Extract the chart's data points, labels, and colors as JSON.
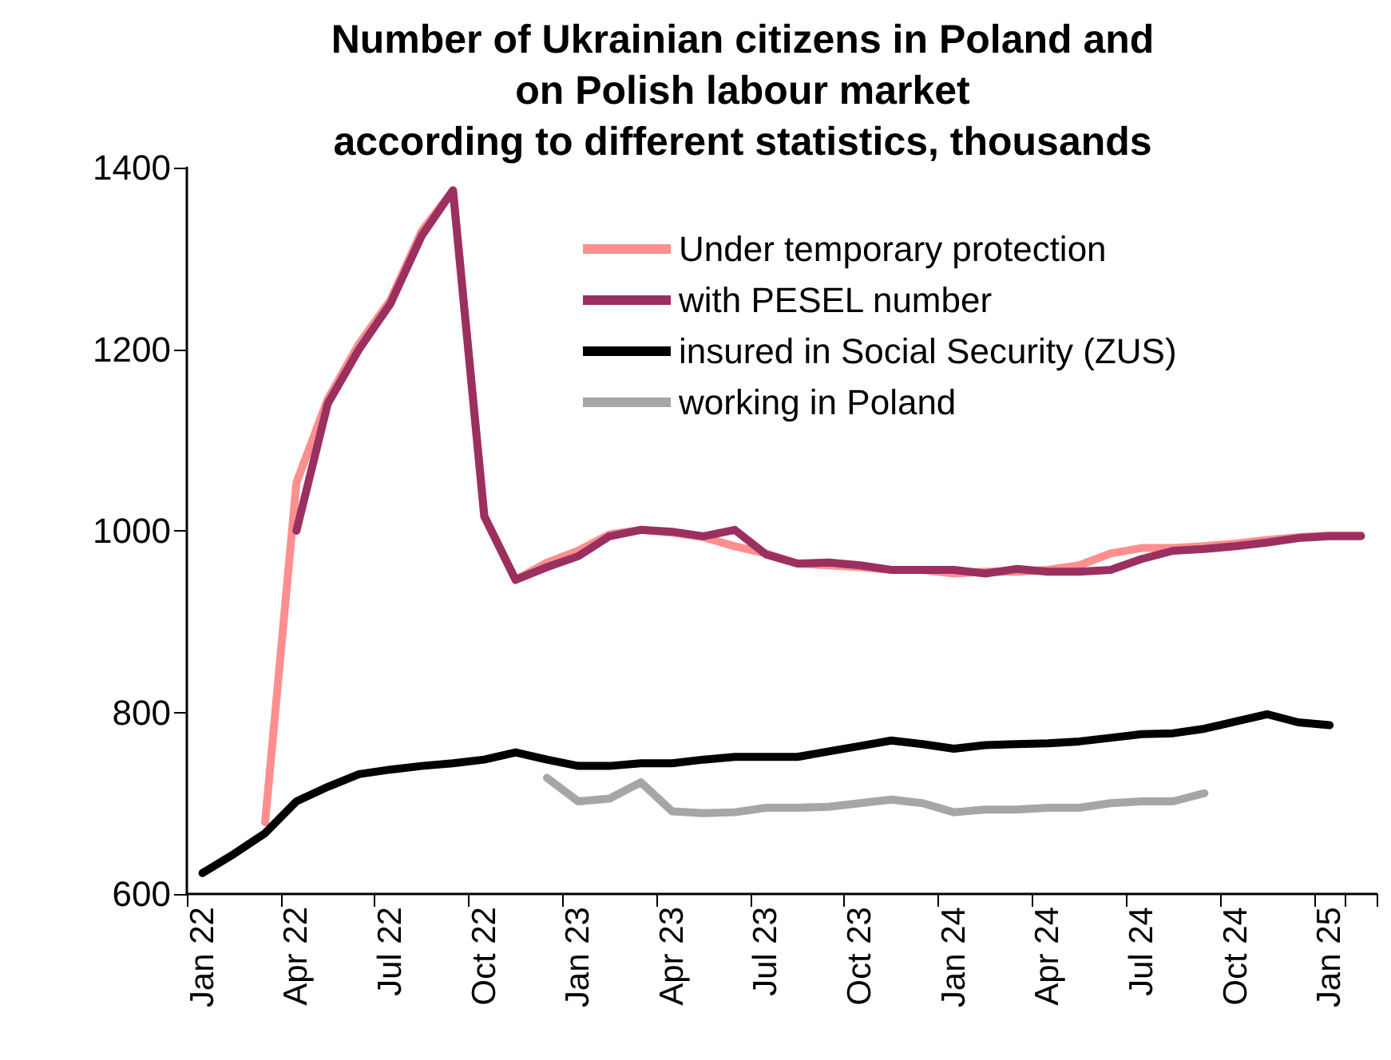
{
  "chart_data": {
    "type": "line",
    "title": "Number of Ukrainian citizens in Poland and\non Polish labour market\naccording to different statistics, thousands",
    "categories": [
      "Jan 22",
      null,
      null,
      "Apr 22",
      null,
      null,
      "Jul 22",
      null,
      null,
      "Oct 22",
      null,
      null,
      "Jan 23",
      null,
      null,
      "Apr 23",
      null,
      null,
      "Jul 23",
      null,
      null,
      "Oct 23",
      null,
      null,
      "Jan 24",
      null,
      null,
      "Apr 24",
      null,
      null,
      "Jul 24",
      null,
      null,
      "Oct 24",
      null,
      null,
      "Jan 25",
      null
    ],
    "series": [
      {
        "name": "Under temporary protection",
        "color": "#ff8f8f",
        "values": [
          null,
          null,
          679,
          1053,
          1145,
          1206,
          1254,
          1330,
          1375,
          1016,
          946,
          965,
          978,
          996,
          1001,
          998,
          993,
          983,
          975,
          964,
          962,
          960,
          957,
          957,
          953,
          955,
          955,
          957,
          962,
          975,
          981,
          981,
          983,
          986,
          990,
          993,
          995,
          995
        ]
      },
      {
        "name": "with PESEL number",
        "color": "#9b3060",
        "values": [
          null,
          null,
          null,
          1000,
          1140,
          1200,
          1250,
          1325,
          1375,
          1016,
          946,
          960,
          972,
          994,
          1001,
          999,
          994,
          1001,
          974,
          964,
          965,
          962,
          957,
          957,
          957,
          953,
          958,
          955,
          955,
          957,
          969,
          978,
          980,
          983,
          987,
          992,
          994,
          994
        ]
      },
      {
        "name": "insured in Social Security (ZUS)",
        "color": "#000000",
        "values": [
          623,
          644,
          667,
          702,
          718,
          732,
          737,
          741,
          744,
          748,
          756,
          748,
          741,
          741,
          744,
          744,
          748,
          751,
          751,
          751,
          757,
          763,
          769,
          765,
          760,
          764,
          765,
          766,
          768,
          772,
          776,
          777,
          782,
          790,
          798,
          789,
          786,
          null
        ]
      },
      {
        "name": "working in Poland",
        "color": "#a6a6a6",
        "values": [
          null,
          null,
          null,
          null,
          null,
          null,
          null,
          null,
          null,
          null,
          null,
          728,
          702,
          705,
          723,
          691,
          689,
          690,
          695,
          695,
          696,
          700,
          704,
          700,
          690,
          693,
          693,
          695,
          695,
          700,
          702,
          702,
          711,
          null,
          null,
          null,
          null,
          null
        ]
      }
    ],
    "ylim": [
      600,
      1400
    ],
    "yticks": [
      600,
      800,
      1000,
      1200,
      1400
    ],
    "grid": false,
    "legend": "top right"
  }
}
